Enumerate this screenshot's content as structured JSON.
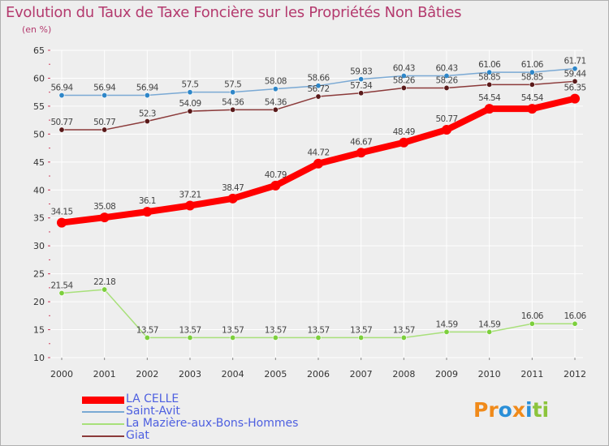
{
  "title": "Evolution du Taux de Taxe Foncière sur les Propriétés Non Bâties",
  "unit_label": "(en %)",
  "colors": {
    "background": "#eeeeee",
    "title": "#b43a6e",
    "grid": "#ffffff",
    "axis_tick": "#d04060",
    "legend_text": "#4d5fe0"
  },
  "logo": {
    "letters": [
      "P",
      "r",
      "o",
      "x",
      "i",
      "t",
      "i"
    ],
    "colors": [
      "#f08a1a",
      "#f08a1a",
      "#2a8fd8",
      "#f08a1a",
      "#2a8fd8",
      "#8cc43c",
      "#8cc43c"
    ]
  },
  "chart_data": {
    "type": "line",
    "title": "Evolution du Taux de Taxe Foncière sur les Propriétés Non Bâties",
    "ylabel": "(en %)",
    "xlabel": "",
    "categories": [
      "2000",
      "2001",
      "2002",
      "2003",
      "2004",
      "2005",
      "2006",
      "2007",
      "2008",
      "2009",
      "2010",
      "2011",
      "2012"
    ],
    "ylim": [
      10,
      65
    ],
    "yticks": [
      "10",
      "15",
      "20",
      "25",
      "30",
      "35",
      "40",
      "45",
      "50",
      "55",
      "60",
      "65"
    ],
    "grid": true,
    "legend_position": "bottom-left",
    "series": [
      {
        "name": "Saint-Avit",
        "color": "#7aa9d4",
        "marker": "#2e86c8",
        "values": [
          56.94,
          56.94,
          56.94,
          57.5,
          57.5,
          58.08,
          58.66,
          59.83,
          60.43,
          60.43,
          61.06,
          61.06,
          61.71
        ],
        "labels": [
          "56.94",
          "56.94",
          "56.94",
          "57.5",
          "57.5",
          "58.08",
          "58.66",
          "59.83",
          "60.43",
          "60.43",
          "61.06",
          "61.06",
          "61.71"
        ]
      },
      {
        "name": "Giat",
        "color": "#8b3a3a",
        "marker": "#5a1a1a",
        "values": [
          50.77,
          50.77,
          52.3,
          54.09,
          54.36,
          54.36,
          56.72,
          57.34,
          58.26,
          58.26,
          58.85,
          58.85,
          59.44
        ],
        "labels": [
          "50.77",
          "50.77",
          "52.3",
          "54.09",
          "54.36",
          "54.36",
          "56.72",
          "57.34",
          "58.26",
          "58.26",
          "58.85",
          "58.85",
          "59.44"
        ]
      },
      {
        "name": "LA CELLE",
        "color": "#ff0000",
        "marker": "#ff0000",
        "values": [
          34.15,
          35.08,
          36.1,
          37.21,
          38.47,
          40.79,
          44.72,
          46.67,
          48.49,
          50.77,
          54.54,
          54.54,
          56.35
        ],
        "labels": [
          "34.15",
          "35.08",
          "36.1",
          "37.21",
          "38.47",
          "40.79",
          "44.72",
          "46.67",
          "48.49",
          "50.77",
          "54.54",
          "54.54",
          "56.35"
        ]
      },
      {
        "name": "La Mazière-aux-Bons-Hommes",
        "color": "#a8e07a",
        "marker": "#7ccf3c",
        "values": [
          21.54,
          22.18,
          13.57,
          13.57,
          13.57,
          13.57,
          13.57,
          13.57,
          13.57,
          14.59,
          14.59,
          16.06,
          16.06
        ],
        "labels": [
          "21.54",
          "22.18",
          "13.57",
          "13.57",
          "13.57",
          "13.57",
          "13.57",
          "13.57",
          "13.57",
          "14.59",
          "14.59",
          "16.06",
          "16.06"
        ]
      }
    ]
  },
  "legend": [
    {
      "name": "LA CELLE",
      "color": "#ff0000",
      "width": 9
    },
    {
      "name": "Saint-Avit",
      "color": "#7aa9d4",
      "width": 2
    },
    {
      "name": "La Mazière-aux-Bons-Hommes",
      "color": "#a8e07a",
      "width": 2
    },
    {
      "name": "Giat",
      "color": "#8b3a3a",
      "width": 2
    }
  ]
}
